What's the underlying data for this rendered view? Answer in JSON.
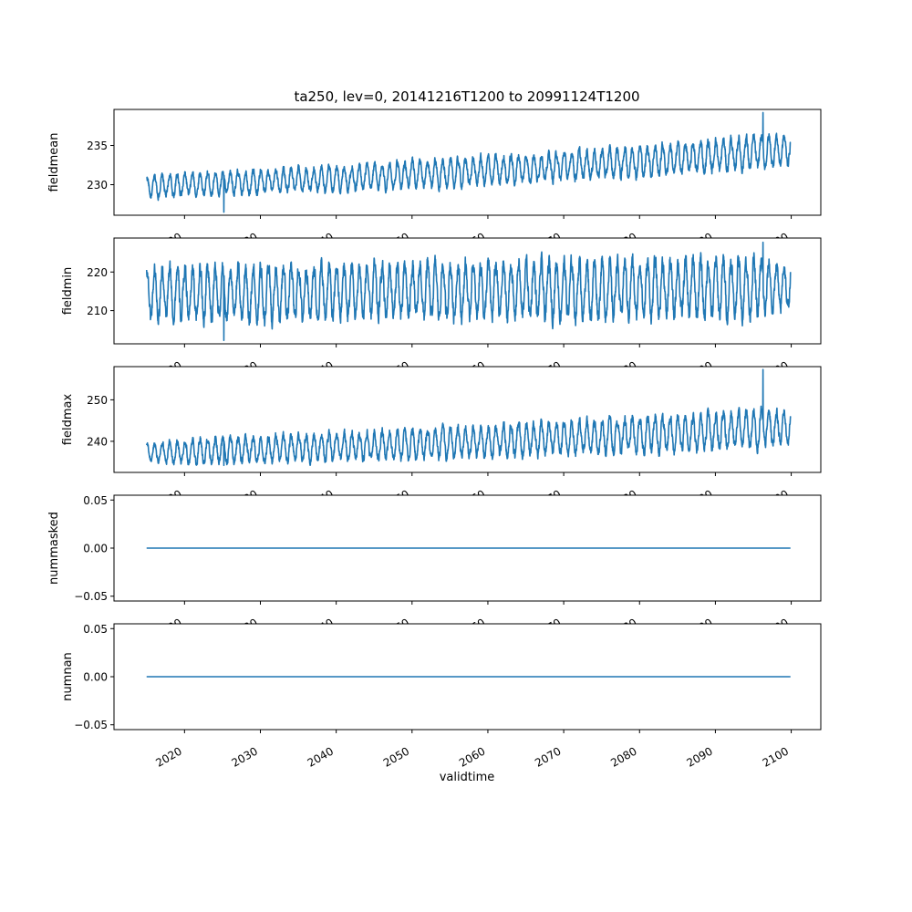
{
  "title": "ta250, lev=0, 20141216T1200 to 20991124T1200",
  "xlabel": "validtime",
  "line_color": "#1f77b4",
  "x_ticks": [
    "2020",
    "2030",
    "2040",
    "2050",
    "2060",
    "2070",
    "2080",
    "2090",
    "2100"
  ],
  "chart_data": [
    {
      "type": "line",
      "ylabel": "fieldmean",
      "xlim": [
        2010.7,
        2103.9
      ],
      "ylim": [
        226.1,
        239.6
      ],
      "y_ticks": [
        "230",
        "235"
      ],
      "y_tick_values": [
        230,
        235
      ],
      "series": [
        {
          "x": [
            2015.0,
            2020.0,
            2025.0,
            2030.0,
            2035.0,
            2040.0,
            2045.0,
            2050.0,
            2055.0,
            2060.0,
            2065.0,
            2070.0,
            2075.0,
            2080.0,
            2085.0,
            2090.0,
            2095.0,
            2099.9
          ],
          "y_center": [
            229.7,
            230.0,
            230.2,
            230.4,
            230.6,
            230.8,
            231.0,
            231.3,
            231.5,
            231.8,
            232.1,
            232.4,
            232.7,
            233.0,
            233.3,
            233.7,
            234.1,
            234.5
          ],
          "y_amplitude": [
            1.6,
            1.8,
            1.8,
            1.9,
            1.9,
            2.0,
            2.0,
            2.1,
            2.1,
            2.2,
            2.2,
            2.3,
            2.3,
            2.4,
            2.4,
            2.5,
            2.6,
            2.2
          ],
          "y_min": 226.5,
          "y_max": 239.2
        }
      ]
    },
    {
      "type": "line",
      "ylabel": "fieldmin",
      "xlim": [
        2010.7,
        2103.9
      ],
      "ylim": [
        201.4,
        228.8
      ],
      "y_ticks": [
        "210",
        "220"
      ],
      "y_tick_values": [
        210,
        220
      ],
      "series": [
        {
          "x": [
            2015.0,
            2020.0,
            2025.0,
            2030.0,
            2035.0,
            2040.0,
            2045.0,
            2050.0,
            2055.0,
            2060.0,
            2065.0,
            2070.0,
            2075.0,
            2080.0,
            2085.0,
            2090.0,
            2095.0,
            2099.9
          ],
          "y_center": [
            214.5,
            214.5,
            214.6,
            214.7,
            214.8,
            214.9,
            215.0,
            215.1,
            215.2,
            215.3,
            215.4,
            215.5,
            215.6,
            215.7,
            215.8,
            215.9,
            216.0,
            216.1
          ],
          "y_amplitude": [
            8.0,
            8.5,
            8.6,
            8.7,
            8.7,
            8.8,
            8.8,
            8.9,
            8.9,
            9.0,
            9.0,
            9.0,
            9.1,
            9.1,
            9.1,
            9.2,
            9.2,
            7.5
          ],
          "y_min": 202.3,
          "y_max": 227.7
        }
      ]
    },
    {
      "type": "line",
      "ylabel": "fieldmax",
      "xlim": [
        2010.7,
        2103.9
      ],
      "ylim": [
        232.5,
        258.0
      ],
      "y_ticks": [
        "240",
        "250"
      ],
      "y_tick_values": [
        240,
        250
      ],
      "series": [
        {
          "x": [
            2015.0,
            2020.0,
            2025.0,
            2030.0,
            2035.0,
            2040.0,
            2045.0,
            2050.0,
            2055.0,
            2060.0,
            2065.0,
            2070.0,
            2075.0,
            2080.0,
            2085.0,
            2090.0,
            2095.0,
            2099.9
          ],
          "y_center": [
            237.3,
            237.5,
            237.8,
            238.1,
            238.4,
            238.7,
            239.0,
            239.3,
            239.6,
            240.0,
            240.4,
            240.8,
            241.2,
            241.6,
            242.0,
            242.5,
            243.0,
            243.5
          ],
          "y_amplitude": [
            2.5,
            3.5,
            3.7,
            3.9,
            4.0,
            4.1,
            4.2,
            4.4,
            4.5,
            4.6,
            4.8,
            4.9,
            5.0,
            5.2,
            5.3,
            5.4,
            5.6,
            4.5
          ],
          "y_min": 234.2,
          "y_max": 257.3
        }
      ]
    },
    {
      "type": "line",
      "ylabel": "nummasked",
      "xlim": [
        2010.7,
        2103.9
      ],
      "ylim": [
        -0.055,
        0.055
      ],
      "y_ticks": [
        "0.05",
        "0.00",
        "−0.05"
      ],
      "y_tick_values": [
        0.05,
        0.0,
        -0.05
      ],
      "series": [
        {
          "x": [
            2015.0,
            2099.9
          ],
          "y": [
            0.0,
            0.0
          ]
        }
      ]
    },
    {
      "type": "line",
      "ylabel": "numnan",
      "xlim": [
        2010.7,
        2103.9
      ],
      "ylim": [
        -0.055,
        0.055
      ],
      "y_ticks": [
        "0.05",
        "0.00",
        "−0.05"
      ],
      "y_tick_values": [
        0.05,
        0.0,
        -0.05
      ],
      "series": [
        {
          "x": [
            2015.0,
            2099.9
          ],
          "y": [
            0.0,
            0.0
          ]
        }
      ]
    }
  ]
}
